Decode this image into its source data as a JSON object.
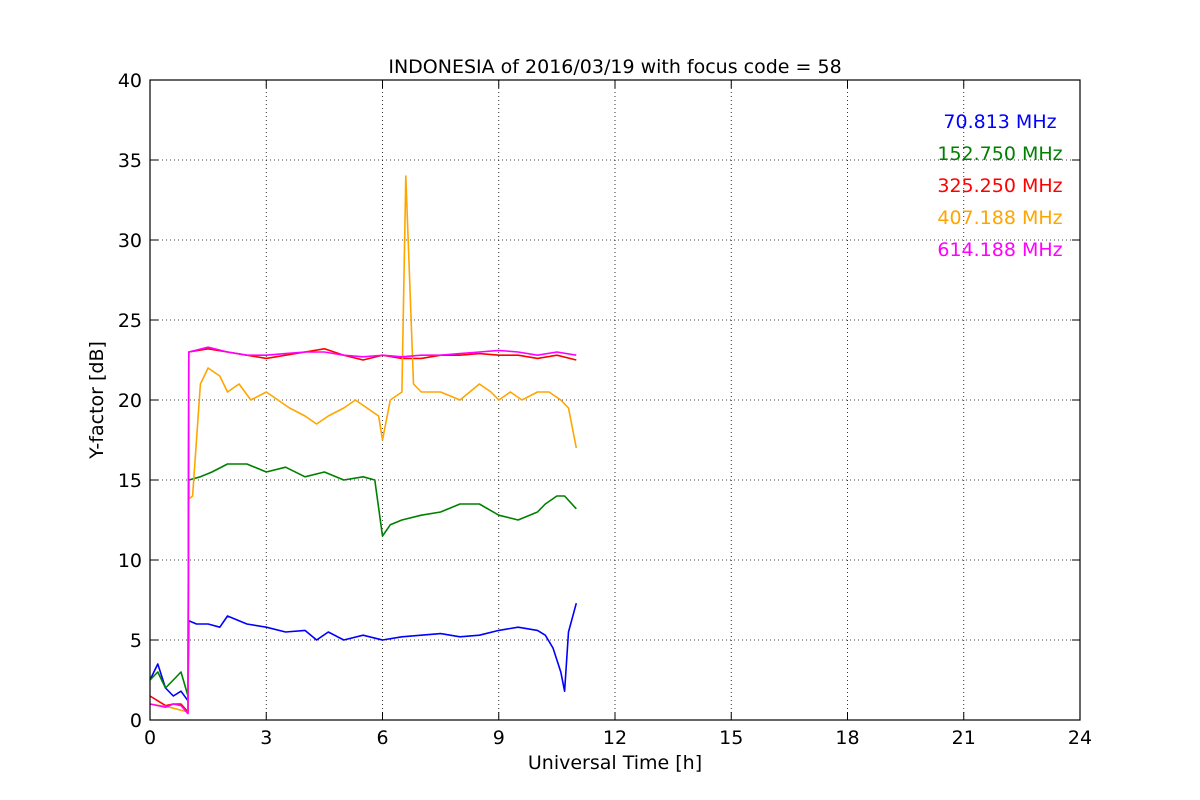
{
  "chart_data": {
    "type": "line",
    "title": "INDONESIA of 2016/03/19 with focus code = 58",
    "xlabel": "Universal Time [h]",
    "ylabel": "Y-factor [dB]",
    "xlim": [
      0,
      24
    ],
    "ylim": [
      0,
      40
    ],
    "xticks": [
      0,
      3,
      6,
      9,
      12,
      15,
      18,
      21,
      24
    ],
    "yticks": [
      0,
      5,
      10,
      15,
      20,
      25,
      30,
      35,
      40
    ],
    "grid": true,
    "legend_position": "top-right",
    "series": [
      {
        "name": "70.813 MHz",
        "color": "#0000ff",
        "x": [
          0,
          0.2,
          0.4,
          0.6,
          0.8,
          0.98,
          1.0,
          1.2,
          1.5,
          1.8,
          2.0,
          2.5,
          3.0,
          3.5,
          4.0,
          4.3,
          4.6,
          5.0,
          5.5,
          6.0,
          6.5,
          7.0,
          7.5,
          8.0,
          8.5,
          9.0,
          9.5,
          10.0,
          10.2,
          10.4,
          10.6,
          10.7,
          10.8,
          11.0
        ],
        "y": [
          2.5,
          3.5,
          2.0,
          1.5,
          1.8,
          1.2,
          6.2,
          6.0,
          6.0,
          5.8,
          6.5,
          6.0,
          5.8,
          5.5,
          5.6,
          5.0,
          5.5,
          5.0,
          5.3,
          5.0,
          5.2,
          5.3,
          5.4,
          5.2,
          5.3,
          5.6,
          5.8,
          5.6,
          5.3,
          4.5,
          3.0,
          1.8,
          5.5,
          7.3
        ]
      },
      {
        "name": "152.750 MHz",
        "color": "#008000",
        "x": [
          0,
          0.2,
          0.4,
          0.6,
          0.8,
          0.98,
          1.0,
          1.3,
          1.6,
          2.0,
          2.5,
          3.0,
          3.5,
          4.0,
          4.5,
          5.0,
          5.5,
          5.8,
          6.0,
          6.2,
          6.5,
          7.0,
          7.5,
          8.0,
          8.5,
          9.0,
          9.5,
          10.0,
          10.2,
          10.5,
          10.7,
          11.0
        ],
        "y": [
          2.5,
          3.0,
          2.0,
          2.5,
          3.0,
          1.5,
          15.0,
          15.2,
          15.5,
          16.0,
          16.0,
          15.5,
          15.8,
          15.2,
          15.5,
          15.0,
          15.2,
          15.0,
          11.5,
          12.2,
          12.5,
          12.8,
          13.0,
          13.5,
          13.5,
          12.8,
          12.5,
          13.0,
          13.5,
          14.0,
          14.0,
          13.2
        ]
      },
      {
        "name": "325.250 MHz",
        "color": "#ff0000",
        "x": [
          0,
          0.2,
          0.4,
          0.6,
          0.8,
          0.98,
          1.0,
          1.5,
          2.0,
          2.5,
          3.0,
          3.5,
          4.0,
          4.5,
          5.0,
          5.5,
          6.0,
          6.5,
          7.0,
          7.5,
          8.0,
          8.5,
          9.0,
          9.5,
          10.0,
          10.5,
          11.0
        ],
        "y": [
          1.5,
          1.2,
          0.9,
          1.0,
          1.0,
          0.5,
          23.0,
          23.2,
          23.0,
          22.8,
          22.6,
          22.8,
          23.0,
          23.2,
          22.8,
          22.5,
          22.8,
          22.6,
          22.6,
          22.8,
          22.8,
          22.9,
          22.8,
          22.8,
          22.6,
          22.8,
          22.5
        ]
      },
      {
        "name": "407.188 MHz",
        "color": "#ffa500",
        "x": [
          0,
          0.5,
          0.98,
          1.0,
          1.1,
          1.3,
          1.5,
          1.8,
          2.0,
          2.3,
          2.6,
          3.0,
          3.3,
          3.6,
          4.0,
          4.3,
          4.6,
          5.0,
          5.3,
          5.6,
          5.9,
          6.0,
          6.2,
          6.5,
          6.6,
          6.8,
          7.0,
          7.5,
          8.0,
          8.5,
          8.8,
          9.0,
          9.3,
          9.6,
          10.0,
          10.3,
          10.6,
          10.8,
          11.0
        ],
        "y": [
          1.0,
          0.8,
          0.5,
          13.8,
          14.0,
          21.0,
          22.0,
          21.5,
          20.5,
          21.0,
          20.0,
          20.5,
          20.0,
          19.5,
          19.0,
          18.5,
          19.0,
          19.5,
          20.0,
          19.5,
          19.0,
          17.5,
          20.0,
          20.5,
          34.0,
          21.0,
          20.5,
          20.5,
          20.0,
          21.0,
          20.5,
          20.0,
          20.5,
          20.0,
          20.5,
          20.5,
          20.0,
          19.5,
          17.0
        ]
      },
      {
        "name": "614.188 MHz",
        "color": "#ff00ff",
        "x": [
          0,
          0.2,
          0.4,
          0.6,
          0.8,
          0.98,
          1.0,
          1.5,
          2.0,
          2.5,
          3.0,
          3.5,
          4.0,
          4.5,
          5.0,
          5.5,
          6.0,
          6.5,
          7.0,
          7.5,
          8.0,
          8.5,
          9.0,
          9.5,
          10.0,
          10.5,
          11.0
        ],
        "y": [
          1.0,
          0.9,
          0.8,
          1.0,
          0.9,
          0.4,
          23.0,
          23.3,
          23.0,
          22.8,
          22.8,
          22.9,
          23.0,
          23.0,
          22.8,
          22.7,
          22.8,
          22.7,
          22.8,
          22.8,
          22.9,
          23.0,
          23.1,
          23.0,
          22.8,
          23.0,
          22.8
        ]
      }
    ]
  }
}
